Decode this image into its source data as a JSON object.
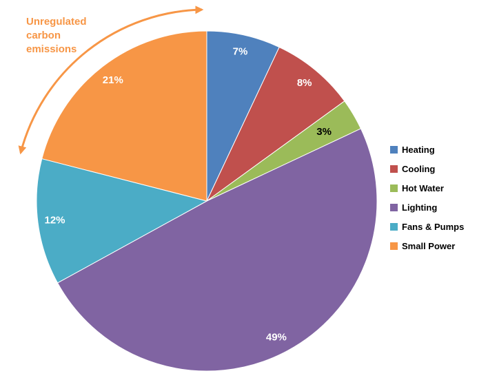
{
  "chart_data": {
    "type": "pie",
    "title": "",
    "categories": [
      "Heating",
      "Cooling",
      "Hot Water",
      "Lighting",
      "Fans & Pumps",
      "Small Power"
    ],
    "values": [
      7,
      8,
      3,
      49,
      12,
      21
    ],
    "data_labels": [
      "7%",
      "8%",
      "3%",
      "49%",
      "12%",
      "21%"
    ],
    "colors": [
      "#4F81BD",
      "#C0504D",
      "#9BBB59",
      "#8064A2",
      "#4BACC6",
      "#F79646"
    ],
    "label_colors": [
      "#ffffff",
      "#ffffff",
      "#000000",
      "#ffffff",
      "#ffffff",
      "#ffffff"
    ],
    "label_radius": [
      0.9,
      0.9,
      0.8,
      0.9,
      0.9,
      0.9
    ],
    "start_angle": 0,
    "direction": "clockwise",
    "legend_position": "right",
    "grid": false,
    "annotation": {
      "lines": [
        "Unregulated",
        "carbon",
        "emissions"
      ],
      "color": "#F79646",
      "arrow": "curved-double-headed-arc"
    }
  }
}
